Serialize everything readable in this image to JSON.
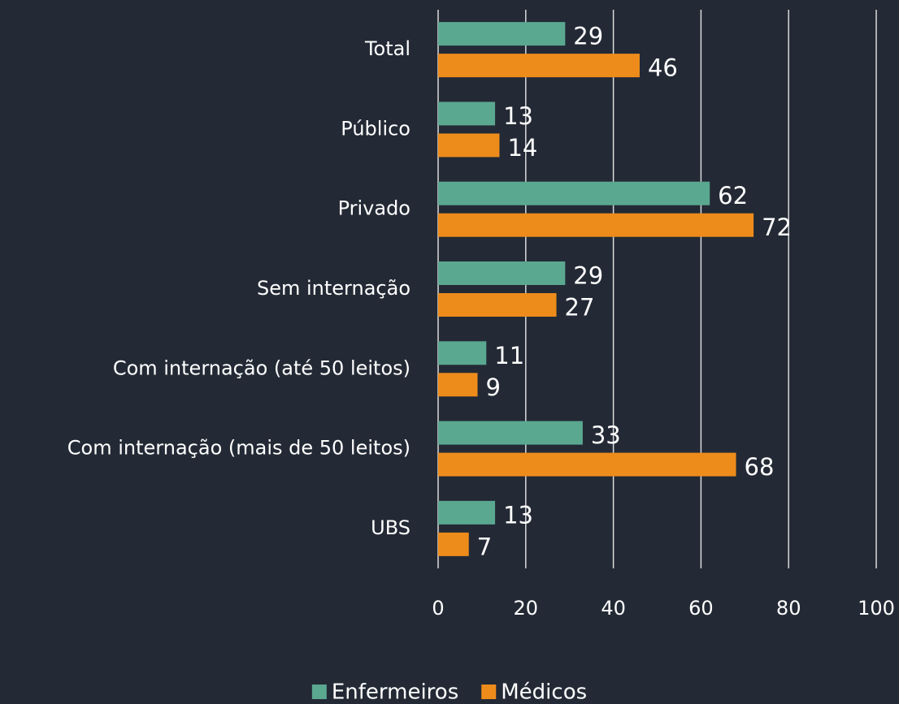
{
  "chart_data": {
    "type": "bar",
    "orientation": "horizontal",
    "categories": [
      "Total",
      "Público",
      "Privado",
      "Sem internação",
      "Com internação (até 50 leitos)",
      "Com internação (mais de 50 leitos)",
      "UBS"
    ],
    "series": [
      {
        "name": "Enfermeiros",
        "color": "#5ba891",
        "values": [
          29,
          13,
          62,
          29,
          11,
          33,
          13
        ]
      },
      {
        "name": "Médicos",
        "color": "#ee8c1b",
        "values": [
          46,
          14,
          72,
          27,
          9,
          68,
          7
        ]
      }
    ],
    "xlim": [
      0,
      100
    ],
    "xticks": [
      0,
      20,
      40,
      60,
      80,
      100
    ],
    "grid": true,
    "legend": "bottom"
  }
}
